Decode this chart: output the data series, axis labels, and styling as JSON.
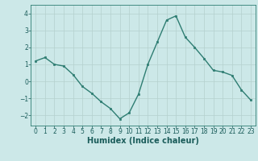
{
  "x": [
    0,
    1,
    2,
    3,
    4,
    5,
    6,
    7,
    8,
    9,
    10,
    11,
    12,
    13,
    14,
    15,
    16,
    17,
    18,
    19,
    20,
    21,
    22,
    23
  ],
  "y": [
    1.2,
    1.4,
    1.0,
    0.9,
    0.4,
    -0.3,
    -0.7,
    -1.2,
    -1.6,
    -2.2,
    -1.85,
    -0.75,
    1.0,
    2.3,
    3.6,
    3.85,
    2.6,
    2.0,
    1.35,
    0.65,
    0.55,
    0.35,
    -0.5,
    -1.1
  ],
  "line_color": "#2e7d72",
  "markersize": 2.0,
  "linewidth": 1.0,
  "xlabel": "Humidex (Indice chaleur)",
  "xlabel_fontsize": 7.0,
  "xlabel_color": "#1a5c5a",
  "ylim": [
    -2.6,
    4.5
  ],
  "xlim": [
    -0.5,
    23.5
  ],
  "yticks": [
    -2,
    -1,
    0,
    1,
    2,
    3,
    4
  ],
  "xticks": [
    0,
    1,
    2,
    3,
    4,
    5,
    6,
    7,
    8,
    9,
    10,
    11,
    12,
    13,
    14,
    15,
    16,
    17,
    18,
    19,
    20,
    21,
    22,
    23
  ],
  "bg_color": "#cce8e8",
  "grid_color": "#b5d0ce",
  "tick_color": "#1a5c5a",
  "tick_fontsize": 5.5,
  "spine_color": "#2e7d72"
}
